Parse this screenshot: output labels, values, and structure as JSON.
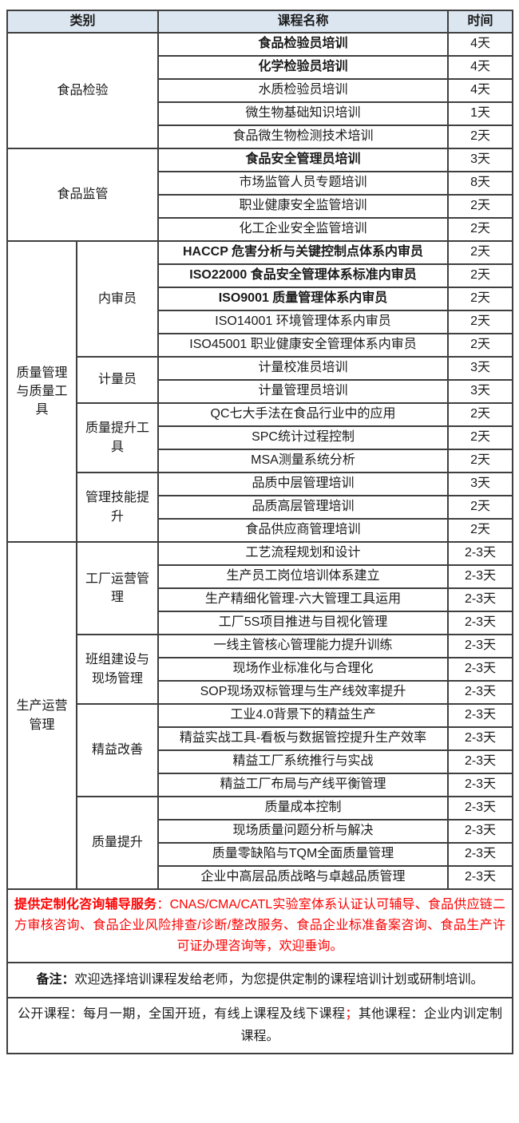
{
  "colors": {
    "header_bg": "#dce6f1",
    "border": "#3f3f3f",
    "highlight_red": "#fe0000",
    "text": "#1a1a1a"
  },
  "table": {
    "headers": {
      "category": "类别",
      "course": "课程名称",
      "time": "时间"
    },
    "sections": [
      {
        "category": "食品检验",
        "groups": [
          {
            "sub": "",
            "courses": [
              {
                "name": "食品检验员培训",
                "days": "4天",
                "bold": true
              },
              {
                "name": "化学检验员培训",
                "days": "4天",
                "bold": true
              },
              {
                "name": "水质检验员培训",
                "days": "4天",
                "bold": false
              },
              {
                "name": "微生物基础知识培训",
                "days": "1天",
                "bold": false
              },
              {
                "name": "食品微生物检测技术培训",
                "days": "2天",
                "bold": false
              }
            ]
          }
        ]
      },
      {
        "category": "食品监管",
        "groups": [
          {
            "sub": "",
            "courses": [
              {
                "name": "食品安全管理员培训",
                "days": "3天",
                "bold": true
              },
              {
                "name": "市场监管人员专题培训",
                "days": "8天",
                "bold": false
              },
              {
                "name": "职业健康安全监管培训",
                "days": "2天",
                "bold": false
              },
              {
                "name": "化工企业安全监管培训",
                "days": "2天",
                "bold": false
              }
            ]
          }
        ]
      },
      {
        "category": "质量管理与质量工具",
        "groups": [
          {
            "sub": "内审员",
            "courses": [
              {
                "name": "HACCP 危害分析与关键控制点体系内审员",
                "days": "2天",
                "bold": true
              },
              {
                "name": "ISO22000 食品安全管理体系标准内审员",
                "days": "2天",
                "bold": true
              },
              {
                "name": "ISO9001 质量管理体系内审员",
                "days": "2天",
                "bold": true
              },
              {
                "name": "ISO14001 环境管理体系内审员",
                "days": "2天",
                "bold": false
              },
              {
                "name": "ISO45001 职业健康安全管理体系内审员",
                "days": "2天",
                "bold": false
              }
            ]
          },
          {
            "sub": "计量员",
            "courses": [
              {
                "name": "计量校准员培训",
                "days": "3天",
                "bold": false
              },
              {
                "name": "计量管理员培训",
                "days": "3天",
                "bold": false
              }
            ]
          },
          {
            "sub": "质量提升工具",
            "courses": [
              {
                "name": "QC七大手法在食品行业中的应用",
                "days": "2天",
                "bold": false
              },
              {
                "name": "SPC统计过程控制",
                "days": "2天",
                "bold": false
              },
              {
                "name": "MSA测量系统分析",
                "days": "2天",
                "bold": false
              }
            ]
          },
          {
            "sub": "管理技能提升",
            "courses": [
              {
                "name": "品质中层管理培训",
                "days": "3天",
                "bold": false
              },
              {
                "name": "品质高层管理培训",
                "days": "2天",
                "bold": false
              },
              {
                "name": "食品供应商管理培训",
                "days": "2天",
                "bold": false
              }
            ]
          }
        ]
      },
      {
        "category": "生产运营管理",
        "groups": [
          {
            "sub": "工厂运营管理",
            "courses": [
              {
                "name": "工艺流程规划和设计",
                "days": "2-3天",
                "bold": false
              },
              {
                "name": "生产员工岗位培训体系建立",
                "days": "2-3天",
                "bold": false
              },
              {
                "name": "生产精细化管理-六大管理工具运用",
                "days": "2-3天",
                "bold": false
              },
              {
                "name": "工厂5S项目推进与目视化管理",
                "days": "2-3天",
                "bold": false
              }
            ]
          },
          {
            "sub": "班组建设与现场管理",
            "courses": [
              {
                "name": "一线主管核心管理能力提升训练",
                "days": "2-3天",
                "bold": false
              },
              {
                "name": "现场作业标准化与合理化",
                "days": "2-3天",
                "bold": false
              },
              {
                "name": "SOP现场双标管理与生产线效率提升",
                "days": "2-3天",
                "bold": false
              }
            ]
          },
          {
            "sub": "精益改善",
            "courses": [
              {
                "name": "工业4.0背景下的精益生产",
                "days": "2-3天",
                "bold": false
              },
              {
                "name": "精益实战工具-看板与数据管控提升生产效率",
                "days": "2-3天",
                "bold": false
              },
              {
                "name": "精益工厂系统推行与实战",
                "days": "2-3天",
                "bold": false
              },
              {
                "name": "精益工厂布局与产线平衡管理",
                "days": "2-3天",
                "bold": false
              }
            ]
          },
          {
            "sub": "质量提升",
            "courses": [
              {
                "name": "质量成本控制",
                "days": "2-3天",
                "bold": false
              },
              {
                "name": "现场质量问题分析与解决",
                "days": "2-3天",
                "bold": false
              },
              {
                "name": "质量零缺陷与TQM全面质量管理",
                "days": "2-3天",
                "bold": false
              },
              {
                "name": "企业中高层品质战略与卓越品质管理",
                "days": "2-3天",
                "bold": false
              }
            ]
          }
        ]
      }
    ]
  },
  "notes": {
    "consulting": {
      "lead": "提供定制化咨询辅导服务",
      "colon": "：",
      "body": "CNAS/CMA/CATL实验室体系认证认可辅导、食品供应链二方审核咨询、食品企业风险排查/诊断/整改服务、食品企业标准备案咨询、食品生产许可证办理咨询等，欢迎垂询。"
    },
    "remark": {
      "lead": "备注：",
      "body": "欢迎选择培训课程发给老师，为您提供定制的课程培训计划或研制培训。"
    },
    "open_course": {
      "part1": "公开课程：每月一期，全国开班，有线上课程及线下课程",
      "separator": "；",
      "part2": "其他课程：企业内训定制课程。"
    }
  }
}
